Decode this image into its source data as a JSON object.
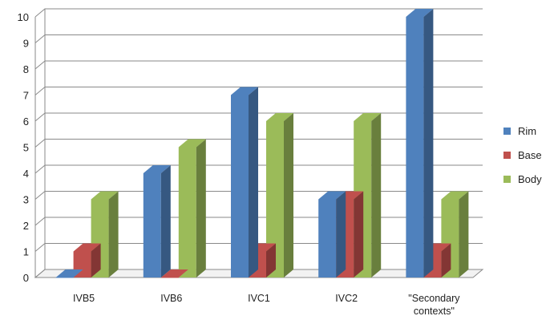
{
  "chart_data": {
    "type": "bar",
    "categories": [
      "IVB5",
      "IVB6",
      "IVC1",
      "IVC2",
      "\"Secondary contexts\""
    ],
    "category_lines": [
      [
        "IVB5"
      ],
      [
        "IVB6"
      ],
      [
        "IVC1"
      ],
      [
        "IVC2"
      ],
      [
        "\"Secondary",
        "contexts\""
      ]
    ],
    "series": [
      {
        "name": "Rim",
        "values": [
          0,
          4,
          7,
          3,
          10
        ],
        "color": "#4F81BD"
      },
      {
        "name": "Base",
        "values": [
          1,
          0,
          1,
          3,
          1
        ],
        "color": "#C0504D"
      },
      {
        "name": "Body",
        "values": [
          3,
          5,
          6,
          6,
          3
        ],
        "color": "#9BBB59"
      }
    ],
    "title": "",
    "xlabel": "",
    "ylabel": "",
    "ylim": [
      0,
      10
    ],
    "yticks": [
      0,
      1,
      2,
      3,
      4,
      5,
      6,
      7,
      8,
      9,
      10
    ],
    "grid": true,
    "legend": "right",
    "style": "3d-clustered-column"
  }
}
